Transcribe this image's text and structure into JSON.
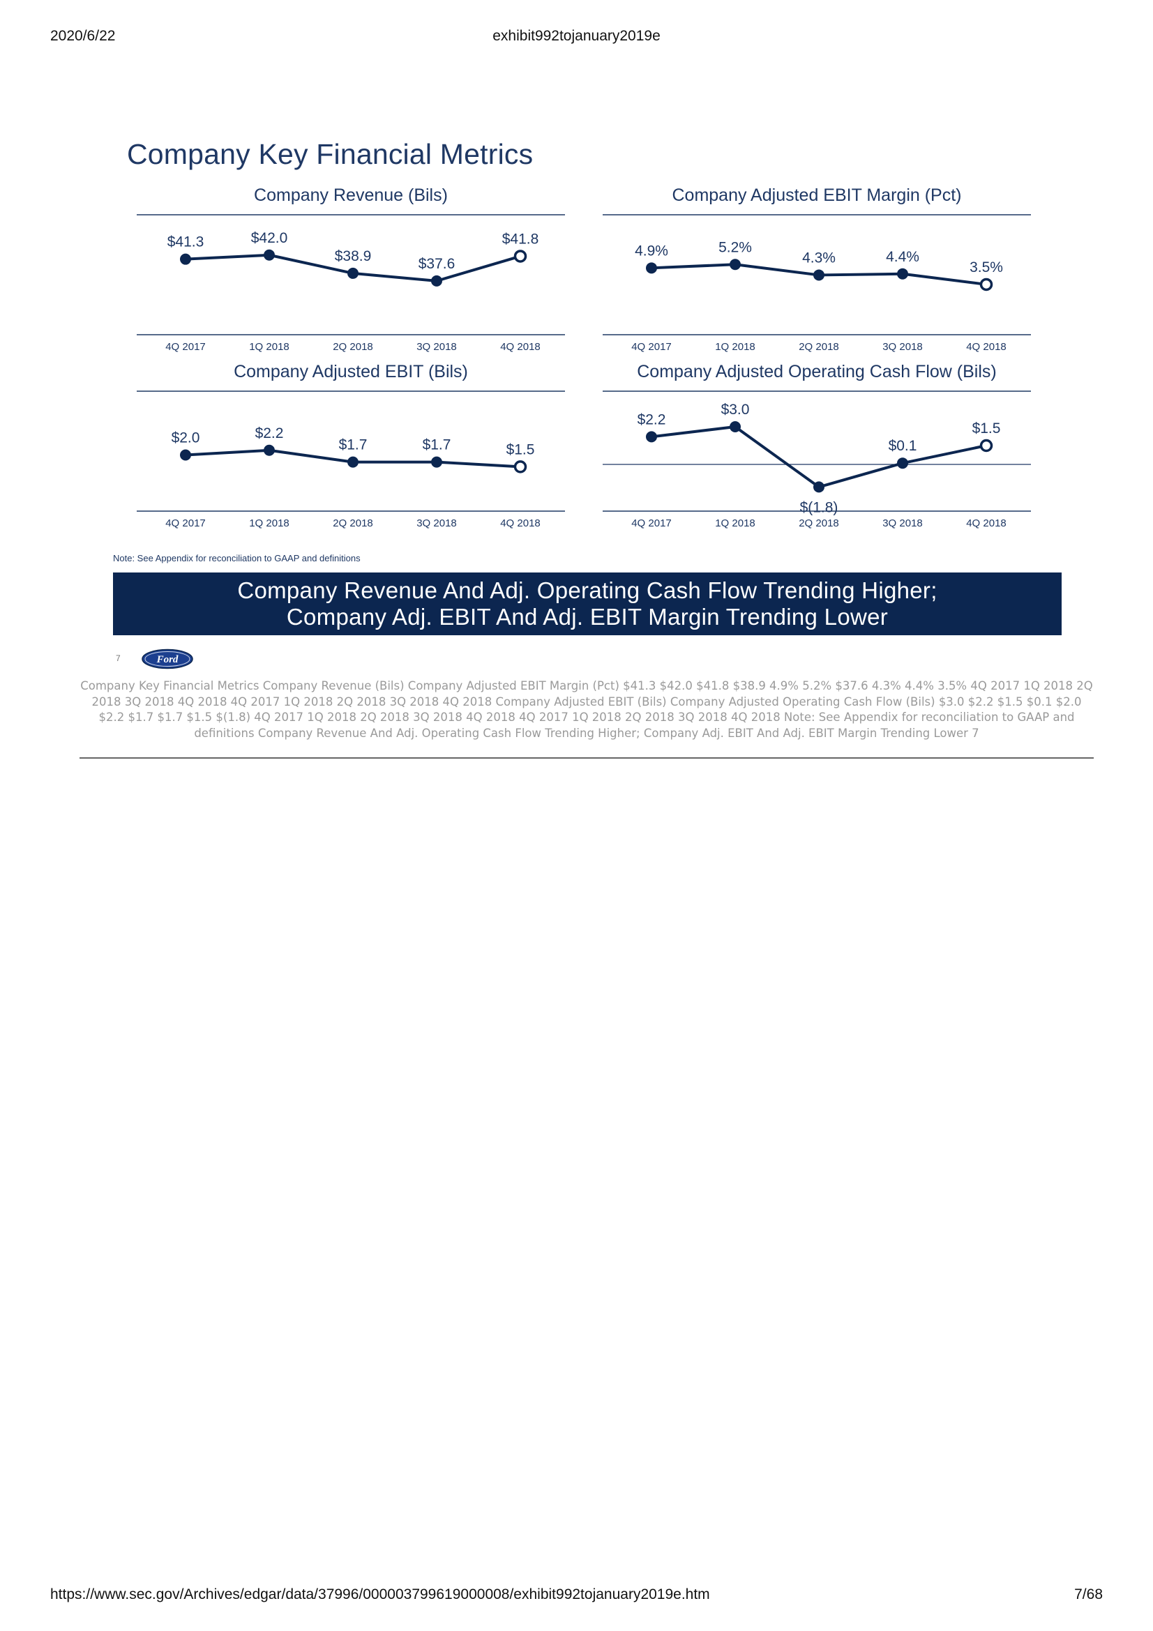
{
  "header": {
    "date": "2020/6/22",
    "doc_title": "exhibit992tojanuary2019e"
  },
  "footer": {
    "url": "https://www.sec.gov/Archives/edgar/data/37996/000003799619000008/exhibit992tojanuary2019e.htm",
    "page": "7/68"
  },
  "slide": {
    "title": "Company Key Financial Metrics",
    "note": "Note: See Appendix for reconciliation to GAAP and definitions",
    "banner_line1": "Company Revenue And Adj. Operating Cash Flow Trending Higher;",
    "banner_line2": "Company Adj. EBIT And Adj. EBIT Margin Trending Lower",
    "page_number": "7",
    "logo_text": "Ford"
  },
  "colors": {
    "navy": "#0c2650",
    "title_blue": "#1f3864",
    "line": "#0c2650"
  },
  "chart_data": [
    {
      "type": "line",
      "title": "Company Revenue (Bils)",
      "categories": [
        "4Q 2017",
        "1Q 2018",
        "2Q 2018",
        "3Q 2018",
        "4Q 2018"
      ],
      "values": [
        41.3,
        42.0,
        38.9,
        37.6,
        41.8
      ],
      "labels": [
        "$41.3",
        "$42.0",
        "$38.9",
        "$37.6",
        "$41.8"
      ],
      "ylim": [
        30,
        46
      ],
      "last_point_hollow": true,
      "zero_line": false
    },
    {
      "type": "line",
      "title": "Company Adjusted EBIT Margin (Pct)",
      "categories": [
        "4Q 2017",
        "1Q 2018",
        "2Q 2018",
        "3Q 2018",
        "4Q 2018"
      ],
      "values": [
        4.9,
        5.2,
        4.3,
        4.4,
        3.5
      ],
      "labels": [
        "4.9%",
        "5.2%",
        "4.3%",
        "4.4%",
        "3.5%"
      ],
      "ylim": [
        0,
        8
      ],
      "last_point_hollow": true,
      "zero_line": false
    },
    {
      "type": "line",
      "title": "Company Adjusted EBIT (Bils)",
      "categories": [
        "4Q 2017",
        "1Q 2018",
        "2Q 2018",
        "3Q 2018",
        "4Q 2018"
      ],
      "values": [
        2.0,
        2.2,
        1.7,
        1.7,
        1.5
      ],
      "labels": [
        "$2.0",
        "$2.2",
        "$1.7",
        "$1.7",
        "$1.5"
      ],
      "ylim": [
        0,
        4
      ],
      "last_point_hollow": true,
      "zero_line": false
    },
    {
      "type": "line",
      "title": "Company Adjusted Operating Cash Flow (Bils)",
      "categories": [
        "4Q 2017",
        "1Q 2018",
        "2Q 2018",
        "3Q 2018",
        "4Q 2018"
      ],
      "values": [
        2.2,
        3.0,
        -1.8,
        0.1,
        1.5
      ],
      "labels": [
        "$2.2",
        "$3.0",
        "$(1.8)",
        "$0.1",
        "$1.5"
      ],
      "ylim": [
        -3,
        4.5
      ],
      "last_point_hollow": true,
      "zero_line": true
    }
  ],
  "alt_text": "Company Key Financial Metrics Company Revenue (Bils) Company Adjusted EBIT Margin (Pct) $41.3 $42.0 $41.8 $38.9 4.9% 5.2% $37.6 4.3% 4.4% 3.5% 4Q 2017 1Q 2018 2Q 2018 3Q 2018 4Q 2018 4Q 2017 1Q 2018 2Q 2018 3Q 2018 4Q 2018 Company Adjusted EBIT (Bils) Company Adjusted Operating Cash Flow (Bils) $3.0 $2.2 $1.5 $0.1 $2.0 $2.2 $1.7 $1.7 $1.5 $(1.8) 4Q 2017 1Q 2018 2Q 2018 3Q 2018 4Q 2018 4Q 2017 1Q 2018 2Q 2018 3Q 2018 4Q 2018 Note: See Appendix for reconciliation to GAAP and definitions Company Revenue And Adj. Operating Cash Flow Trending Higher; Company Adj. EBIT And Adj. EBIT Margin Trending Lower 7"
}
